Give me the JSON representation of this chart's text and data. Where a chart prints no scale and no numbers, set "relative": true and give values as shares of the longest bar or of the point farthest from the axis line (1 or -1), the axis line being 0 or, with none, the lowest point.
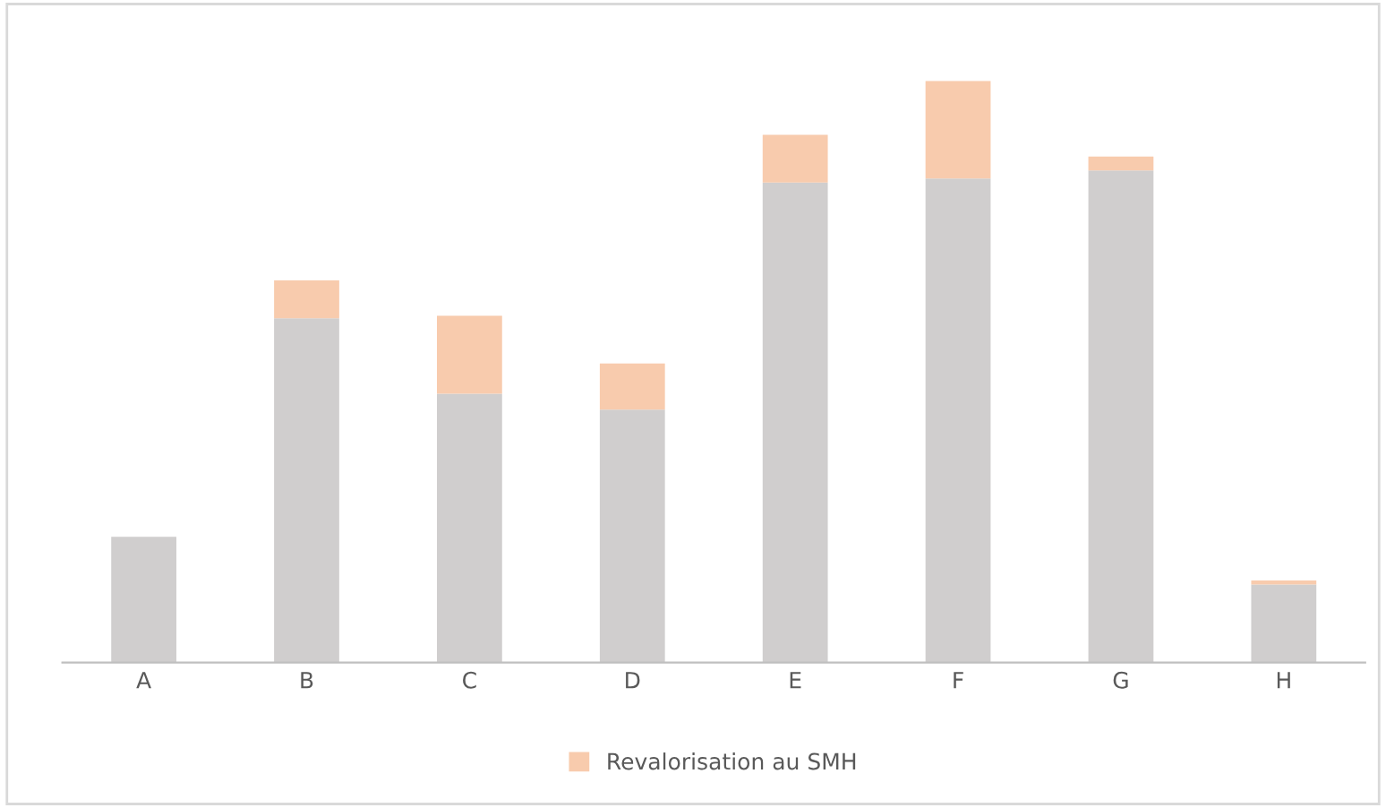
{
  "chart_data": {
    "type": "bar",
    "stacked": true,
    "relative": true,
    "categories": [
      "A",
      "B",
      "C",
      "D",
      "E",
      "F",
      "G",
      "H"
    ],
    "series": [
      {
        "color": "#d0cece",
        "values": [
          0.216,
          0.592,
          0.462,
          0.435,
          0.825,
          0.832,
          0.846,
          0.134
        ]
      },
      {
        "name": "Revalorisation au SMH",
        "color": "#f8cbad",
        "values": [
          0,
          0.065,
          0.134,
          0.079,
          0.082,
          0.168,
          0.024,
          0.007
        ]
      }
    ],
    "legend": "bottom",
    "grid": false
  }
}
